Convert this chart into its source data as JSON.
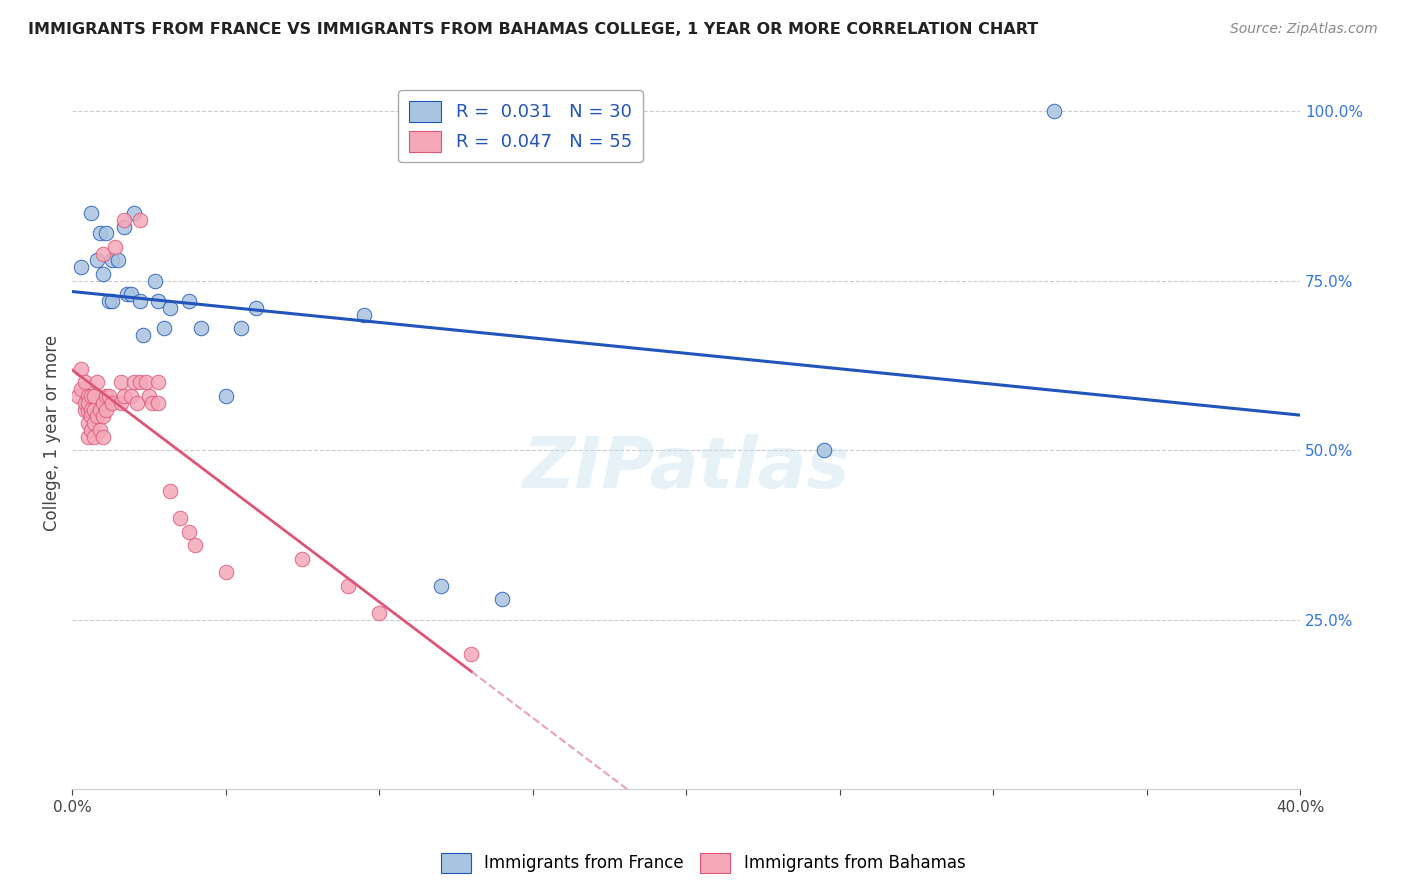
{
  "title": "IMMIGRANTS FROM FRANCE VS IMMIGRANTS FROM BAHAMAS COLLEGE, 1 YEAR OR MORE CORRELATION CHART",
  "source": "Source: ZipAtlas.com",
  "ylabel": "College, 1 year or more",
  "xlim": [
    0.0,
    0.4
  ],
  "ylim": [
    0.0,
    1.05
  ],
  "xtick_positions": [
    0.0,
    0.05,
    0.1,
    0.15,
    0.2,
    0.25,
    0.3,
    0.35,
    0.4
  ],
  "xticklabels": [
    "0.0%",
    "",
    "",
    "",
    "",
    "",
    "",
    "",
    "40.0%"
  ],
  "yticks_right": [
    0.0,
    0.25,
    0.5,
    0.75,
    1.0
  ],
  "yticklabels_right": [
    "",
    "25.0%",
    "50.0%",
    "75.0%",
    "100.0%"
  ],
  "france_R": 0.031,
  "france_N": 30,
  "bahamas_R": 0.047,
  "bahamas_N": 55,
  "france_color": "#a8c4e0",
  "bahamas_color": "#f4a8b8",
  "france_line_color": "#2255bb",
  "bahamas_line_color": "#dd5577",
  "background_color": "#ffffff",
  "watermark": "ZIPatlas",
  "france_x": [
    0.003,
    0.006,
    0.008,
    0.009,
    0.01,
    0.011,
    0.012,
    0.013,
    0.013,
    0.015,
    0.017,
    0.018,
    0.019,
    0.02,
    0.022,
    0.023,
    0.027,
    0.028,
    0.03,
    0.032,
    0.038,
    0.042,
    0.05,
    0.055,
    0.06,
    0.095,
    0.12,
    0.14,
    0.245,
    0.32
  ],
  "france_y": [
    0.77,
    0.85,
    0.78,
    0.82,
    0.76,
    0.82,
    0.72,
    0.78,
    0.72,
    0.78,
    0.83,
    0.73,
    0.73,
    0.85,
    0.72,
    0.67,
    0.75,
    0.72,
    0.68,
    0.71,
    0.72,
    0.68,
    0.58,
    0.68,
    0.71,
    0.7,
    0.3,
    0.28,
    0.5,
    1.0
  ],
  "bahamas_x": [
    0.002,
    0.003,
    0.003,
    0.004,
    0.004,
    0.004,
    0.005,
    0.005,
    0.005,
    0.005,
    0.005,
    0.006,
    0.006,
    0.006,
    0.006,
    0.007,
    0.007,
    0.007,
    0.007,
    0.008,
    0.008,
    0.009,
    0.009,
    0.01,
    0.01,
    0.01,
    0.01,
    0.011,
    0.011,
    0.012,
    0.013,
    0.014,
    0.016,
    0.016,
    0.017,
    0.017,
    0.019,
    0.02,
    0.021,
    0.022,
    0.022,
    0.024,
    0.025,
    0.026,
    0.028,
    0.028,
    0.032,
    0.035,
    0.038,
    0.04,
    0.05,
    0.075,
    0.09,
    0.1,
    0.13
  ],
  "bahamas_y": [
    0.58,
    0.59,
    0.62,
    0.6,
    0.56,
    0.57,
    0.58,
    0.56,
    0.54,
    0.52,
    0.57,
    0.58,
    0.56,
    0.53,
    0.55,
    0.56,
    0.54,
    0.52,
    0.58,
    0.55,
    0.6,
    0.53,
    0.56,
    0.55,
    0.57,
    0.52,
    0.79,
    0.56,
    0.58,
    0.58,
    0.57,
    0.8,
    0.6,
    0.57,
    0.58,
    0.84,
    0.58,
    0.6,
    0.57,
    0.6,
    0.84,
    0.6,
    0.58,
    0.57,
    0.57,
    0.6,
    0.44,
    0.4,
    0.38,
    0.36,
    0.32,
    0.34,
    0.3,
    0.26,
    0.2
  ]
}
